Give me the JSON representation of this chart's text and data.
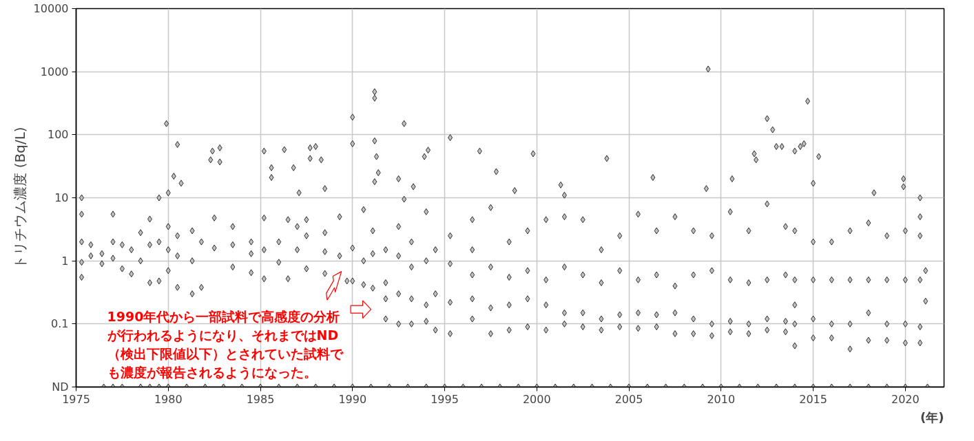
{
  "chart_data": {
    "type": "scatter",
    "ylabel": "トリチウム濃度 (Bq/L)",
    "xlabel": "(年)",
    "annotations": [
      "1990年代から一部試料で高感度の分析が行われるようになり、それまではND（検出下限値以下）とされていた試料でも濃度が報告されるようになった。"
    ],
    "xlim": [
      1975,
      2022.1
    ],
    "xticks": [
      1975,
      1980,
      1985,
      1990,
      1995,
      2000,
      2005,
      2010,
      2015,
      2020
    ],
    "ylim": [
      0.01,
      10000
    ],
    "yticks": [
      {
        "value": 0.01,
        "label": "ND"
      },
      0.1,
      1,
      10,
      100,
      1000,
      10000
    ],
    "log": "y",
    "grid": true,
    "marker": "diamond",
    "series": [
      {
        "color": "#c0c0c0",
        "x": [
          1975.3,
          1975.3,
          1975.3,
          1975.3,
          1975.3,
          1975.8,
          1975.8,
          1976.4,
          1976.4,
          1977.0,
          1977.0,
          1977.0,
          1977.5,
          1977.5,
          1978.0,
          1978.0,
          1978.5,
          1978.5,
          1979.0,
          1979.0,
          1979.0,
          1979.5,
          1979.5,
          1979.5,
          1980.0,
          1980.0,
          1980.0,
          1980.0,
          1980.5,
          1980.5,
          1980.5,
          1981.3,
          1981.3,
          1981.3,
          1981.8,
          1981.8,
          1982.5,
          1982.5,
          1983.5,
          1983.5,
          1983.5,
          1984.5,
          1984.5,
          1984.5,
          1985.2,
          1985.2,
          1985.2,
          1986.0,
          1986.0,
          1986.5,
          1986.5,
          1987.0,
          1987.0,
          1987.5,
          1987.5,
          1987.5,
          1988.5,
          1988.5,
          1988.5,
          1989.3,
          1989.7,
          1989.3,
          1990.0,
          1990.0,
          1990.6,
          1990.6,
          1990.6,
          1991.1,
          1991.1,
          1991.1,
          1991.8,
          1991.8,
          1991.8,
          1991.8,
          1992.5,
          1992.5,
          1992.5,
          1992.5,
          1993.2,
          1993.2,
          1993.2,
          1993.2,
          1994.0,
          1994.0,
          1994.0,
          1994.0,
          1994.5,
          1994.5,
          1994.5,
          1995.3,
          1995.3,
          1995.3,
          1995.3,
          1996.5,
          1996.5,
          1996.5,
          1996.5,
          1996.5,
          1997.5,
          1997.5,
          1997.5,
          1997.5,
          1998.5,
          1998.5,
          1998.5,
          1998.5,
          1999.5,
          1999.5,
          1999.5,
          1999.5,
          2000.5,
          2000.5,
          2000.5,
          2000.5,
          2001.5,
          2001.5,
          2001.5,
          2001.5,
          2002.5,
          2002.5,
          2002.5,
          2002.5,
          2003.5,
          2003.5,
          2003.5,
          2003.5,
          2004.5,
          2004.5,
          2004.5,
          2004.5,
          2005.5,
          2005.5,
          2005.5,
          2005.5,
          2006.5,
          2006.5,
          2006.5,
          2006.5,
          2007.5,
          2007.5,
          2007.5,
          2007.5,
          2008.5,
          2008.5,
          2008.5,
          2008.5,
          2009.5,
          2009.5,
          2009.5,
          2009.5,
          2010.5,
          2010.5,
          2010.5,
          2010.5,
          2011.5,
          2011.5,
          2011.5,
          2011.5,
          2012.5,
          2012.5,
          2012.5,
          2012.5,
          2013.5,
          2013.5,
          2013.5,
          2013.5,
          2014.0,
          2014.0,
          2014.0,
          2014.0,
          2014.0,
          2015.0,
          2015.0,
          2015.0,
          2015.0,
          2016.0,
          2016.0,
          2016.0,
          2016.0,
          2017.0,
          2017.0,
          2017.0,
          2017.0,
          2018.0,
          2018.0,
          2018.0,
          2018.0,
          2019.0,
          2019.0,
          2019.0,
          2019.0,
          2020.0,
          2020.0,
          2020.0,
          2020.0,
          2020.8,
          2020.8,
          2020.8,
          2020.8,
          2020.8,
          2021.1,
          2021.1,
          1979.9,
          1980.5,
          1980.3,
          1980.7,
          1982.3,
          1982.4,
          1982.8,
          1982.8,
          1985.2,
          1985.6,
          1985.6,
          1986.3,
          1986.8,
          1987.1,
          1987.7,
          1987.7,
          1988.0,
          1988.3,
          1988.5,
          1990.0,
          1990.0,
          1991.2,
          1991.2,
          1991.2,
          1991.3,
          1991.2,
          1991.4,
          1992.8,
          1992.5,
          1992.8,
          1993.9,
          1994.1,
          1993.3,
          1995.3,
          1996.9,
          1997.8,
          1998.8,
          1999.8,
          2001.3,
          2001.5,
          2003.8,
          2006.3,
          2009.3,
          2009.2,
          2010.6,
          2011.8,
          2011.9,
          2012.5,
          2012.8,
          2013.0,
          2013.3,
          2014.0,
          2014.3,
          2014.5,
          2014.7,
          2015.3,
          2015.0,
          2018.3,
          2019.9,
          2019.9,
          2020.8
        ],
        "values": [
          2.0,
          0.95,
          0.55,
          5.5,
          10,
          1.8,
          1.2,
          1.3,
          0.9,
          5.5,
          2.0,
          1.1,
          0.75,
          1.8,
          0.62,
          1.5,
          2.8,
          1.0,
          0.45,
          4.6,
          1.8,
          10,
          0.48,
          2.0,
          12,
          3.5,
          1.5,
          0.7,
          0.38,
          2.5,
          1.2,
          0.3,
          3.0,
          1.0,
          0.38,
          2.0,
          4.8,
          1.6,
          1.8,
          0.8,
          3.5,
          2.0,
          0.65,
          1.3,
          4.8,
          0.52,
          1.5,
          2.0,
          0.95,
          0.52,
          4.5,
          1.5,
          3.5,
          4.5,
          0.75,
          2.5,
          0.63,
          1.4,
          2.8,
          5.0,
          0.48,
          1.2,
          0.48,
          1.6,
          6.5,
          0.42,
          1.0,
          3.0,
          0.37,
          1.3,
          0.45,
          0.12,
          0.25,
          1.5,
          0.1,
          0.3,
          1.2,
          3.5,
          0.1,
          0.25,
          0.8,
          2.0,
          0.11,
          0.2,
          1.0,
          6.0,
          0.08,
          0.3,
          1.5,
          0.07,
          0.22,
          0.9,
          2.5,
          0.12,
          0.25,
          0.6,
          1.5,
          4.5,
          0.07,
          0.18,
          0.8,
          7.0,
          0.08,
          0.2,
          0.55,
          2.0,
          0.09,
          0.25,
          0.7,
          3.0,
          0.08,
          0.2,
          0.5,
          4.5,
          0.1,
          0.15,
          0.8,
          5.0,
          0.09,
          0.15,
          0.6,
          4.5,
          0.08,
          0.12,
          0.45,
          1.5,
          0.09,
          0.14,
          0.7,
          2.5,
          0.085,
          0.15,
          0.5,
          5.5,
          0.09,
          0.14,
          0.6,
          3.0,
          0.07,
          0.15,
          0.4,
          5.0,
          0.07,
          0.12,
          0.6,
          3.0,
          0.065,
          0.1,
          0.7,
          2.5,
          0.075,
          0.11,
          0.5,
          6.0,
          0.07,
          0.1,
          0.45,
          3.0,
          0.08,
          0.12,
          0.5,
          8.0,
          0.075,
          0.11,
          0.6,
          3.5,
          0.045,
          0.1,
          0.2,
          0.5,
          3.0,
          0.06,
          0.12,
          0.5,
          2.0,
          0.06,
          0.1,
          0.5,
          2.0,
          0.04,
          0.1,
          0.5,
          3.0,
          0.055,
          0.15,
          0.5,
          4.0,
          0.055,
          0.1,
          0.5,
          2.5,
          0.05,
          0.1,
          0.5,
          3.0,
          0.05,
          0.09,
          0.5,
          5.0,
          2.5,
          0.23,
          0.7,
          150,
          70,
          22,
          17,
          40,
          55,
          62,
          37,
          55,
          30,
          21,
          58,
          30,
          12,
          62,
          42,
          65,
          40,
          14,
          190,
          72,
          480,
          380,
          80,
          45,
          18,
          25,
          150,
          20,
          9.5,
          45,
          57,
          15,
          90,
          55,
          26,
          13,
          50,
          16,
          11,
          42,
          21,
          1100,
          14,
          20,
          50,
          40,
          180,
          120,
          65,
          65,
          55,
          65,
          72,
          340,
          45,
          17,
          12,
          20,
          15,
          10
        ]
      },
      {
        "color": "#c0c0c0",
        "x": [
          1976.5,
          1977.0,
          1977.5,
          1978.5,
          1979.0,
          1979.5,
          1980.0,
          1981.0,
          1982.0,
          1983.0,
          1984.0,
          1985.0,
          1986.0,
          1987.0,
          1988.0,
          1989.0,
          1990.0,
          1991.0,
          1992.0,
          1993.0,
          1994.0,
          1995.0,
          1996.0,
          1997.0,
          1998.0,
          1999.0,
          2000.0,
          2001.0,
          2002.0,
          2003.0,
          2004.0,
          2005.0,
          2006.0,
          2007.0,
          2008.0,
          2009.0,
          2010.0,
          2011.0,
          2012.0,
          2013.0,
          2014.0,
          2015.0,
          2016.0,
          2017.0,
          2018.0,
          2019.0,
          2020.0,
          2021.2
        ],
        "values": [
          0.01,
          0.01,
          0.01,
          0.01,
          0.01,
          0.01,
          0.01,
          0.01,
          0.01,
          0.01,
          0.01,
          0.01,
          0.01,
          0.01,
          0.01,
          0.01,
          0.01,
          0.01,
          0.01,
          0.01,
          0.01,
          0.01,
          0.01,
          0.01,
          0.01,
          0.01,
          0.01,
          0.01,
          0.01,
          0.01,
          0.01,
          0.01,
          0.01,
          0.01,
          0.01,
          0.01,
          0.01,
          0.01,
          0.01,
          0.01,
          0.01,
          0.01,
          0.01,
          0.01,
          0.01,
          0.01,
          0.01,
          0.01
        ]
      }
    ]
  }
}
